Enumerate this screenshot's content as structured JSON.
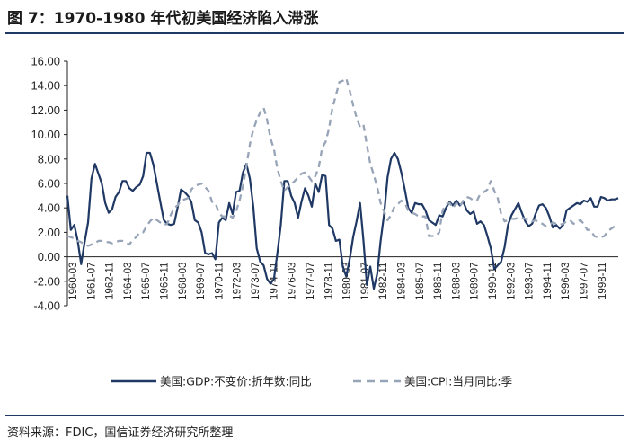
{
  "title": "图 7：1970-1980 年代初美国经济陷入滞涨",
  "source": "资料来源：FDIC，国信证券经济研究所整理",
  "chart_data": {
    "type": "line",
    "ylim": [
      -4,
      16
    ],
    "yticks": [
      "16.00",
      "14.00",
      "12.00",
      "10.00",
      "8.00",
      "6.00",
      "4.00",
      "2.00",
      "0.00",
      "-2.00",
      "-4.00"
    ],
    "x_labels": [
      "1960-03",
      "1961-07",
      "1962-11",
      "1964-03",
      "1965-07",
      "1966-11",
      "1968-03",
      "1969-07",
      "1970-11",
      "1972-03",
      "1973-07",
      "1974-11",
      "1976-03",
      "1977-07",
      "1978-11",
      "1980-03",
      "1981-07",
      "1982-11",
      "1984-03",
      "1985-07",
      "1986-11",
      "1988-03",
      "1989-07",
      "1990-11",
      "1992-03",
      "1993-07",
      "1994-11",
      "1996-03",
      "1997-07",
      "1998-11"
    ],
    "legend_position": "bottom",
    "colors": {
      "gdp": "#1f3864",
      "cpi": "#97a4b7"
    },
    "series": [
      {
        "name": "美国:GDP:不变价:折年数:同比",
        "style": "solid",
        "values": [
          5.0,
          2.2,
          2.6,
          1.3,
          -0.6,
          1.2,
          2.8,
          6.4,
          7.6,
          6.8,
          6.0,
          4.4,
          3.6,
          3.9,
          4.9,
          5.3,
          6.2,
          6.2,
          5.6,
          5.4,
          5.7,
          5.9,
          6.6,
          8.5,
          8.5,
          7.5,
          6.0,
          4.5,
          3.0,
          2.7,
          2.6,
          2.7,
          4.0,
          5.5,
          5.3,
          5.0,
          4.5,
          3.0,
          2.8,
          2.0,
          0.3,
          0.2,
          0.3,
          -0.2,
          2.8,
          3.2,
          3.0,
          4.4,
          3.5,
          5.3,
          5.4,
          6.9,
          7.6,
          6.4,
          4.1,
          0.7,
          -0.4,
          -0.7,
          -1.8,
          -2.2,
          -1.8,
          0.3,
          2.6,
          6.2,
          6.2,
          5.0,
          4.4,
          3.2,
          4.5,
          5.6,
          5.0,
          4.1,
          6.0,
          5.3,
          6.7,
          6.6,
          2.6,
          2.3,
          1.3,
          1.4,
          -0.8,
          -1.6,
          -0.2,
          1.6,
          2.9,
          4.4,
          1.3,
          -2.3,
          -0.8,
          -2.6,
          -1.4,
          1.3,
          3.5,
          6.5,
          8.0,
          8.5,
          8.0,
          6.9,
          5.5,
          4.0,
          3.6,
          4.4,
          4.3,
          4.3,
          3.8,
          3.0,
          2.8,
          2.6,
          3.4,
          3.3,
          4.0,
          4.5,
          4.2,
          4.6,
          4.2,
          4.5,
          3.8,
          3.5,
          3.7,
          2.7,
          2.9,
          2.6,
          1.7,
          0.7,
          -1.0,
          -0.7,
          -0.4,
          0.8,
          2.6,
          3.4,
          3.9,
          4.4,
          3.6,
          2.9,
          2.5,
          2.7,
          3.5,
          4.2,
          4.3,
          4.0,
          3.3,
          2.4,
          2.6,
          2.3,
          2.6,
          3.8,
          4.0,
          4.2,
          4.4,
          4.3,
          4.6,
          4.5,
          4.8,
          4.1,
          4.1,
          4.9,
          4.8,
          4.6,
          4.7,
          4.7,
          4.8
        ]
      },
      {
        "name": "美国:CPI:当月同比:季",
        "style": "dashed",
        "values": [
          1.7,
          1.6,
          1.5,
          1.3,
          1.2,
          1.0,
          0.9,
          1.0,
          1.1,
          1.3,
          1.3,
          1.2,
          1.2,
          1.1,
          1.2,
          1.3,
          1.3,
          1.2,
          1.0,
          1.4,
          1.6,
          2.0,
          2.0,
          2.5,
          2.9,
          3.2,
          3.0,
          2.8,
          2.6,
          2.7,
          3.4,
          4.0,
          4.2,
          4.6,
          4.7,
          4.8,
          5.5,
          5.8,
          5.9,
          6.0,
          5.7,
          5.4,
          4.5,
          4.4,
          3.6,
          3.3,
          3.3,
          3.4,
          3.2,
          3.7,
          4.6,
          5.8,
          7.4,
          9.2,
          10.4,
          11.2,
          11.8,
          12.2,
          11.2,
          9.7,
          8.8,
          7.2,
          6.2,
          5.4,
          5.7,
          5.9,
          6.2,
          6.5,
          6.8,
          6.9,
          6.6,
          6.2,
          6.6,
          7.3,
          8.9,
          9.4,
          10.5,
          12.2,
          13.2,
          14.3,
          14.4,
          14.6,
          13.6,
          12.4,
          11.4,
          10.6,
          10.8,
          9.1,
          7.6,
          6.7,
          5.7,
          4.4,
          3.7,
          3.0,
          3.4,
          4.1,
          4.3,
          4.6,
          4.4,
          3.8,
          3.6,
          3.5,
          3.3,
          3.3,
          3.3,
          1.7,
          1.7,
          1.7,
          2.0,
          3.8,
          4.3,
          4.4,
          4.0,
          4.4,
          4.1,
          4.6,
          4.9,
          4.8,
          4.6,
          4.6,
          5.2,
          5.3,
          5.5,
          6.2,
          5.4,
          4.8,
          3.5,
          2.9,
          3.0,
          3.1,
          3.1,
          3.2,
          3.2,
          3.1,
          3.1,
          2.9,
          3.0,
          2.8,
          2.7,
          2.5,
          2.6,
          2.8,
          2.7,
          2.6,
          2.7,
          2.9,
          3.0,
          2.7,
          2.9,
          3.0,
          2.7,
          2.2,
          2.2,
          1.7,
          1.6,
          1.6,
          1.7,
          2.1,
          2.3,
          2.5,
          2.7
        ]
      }
    ]
  }
}
